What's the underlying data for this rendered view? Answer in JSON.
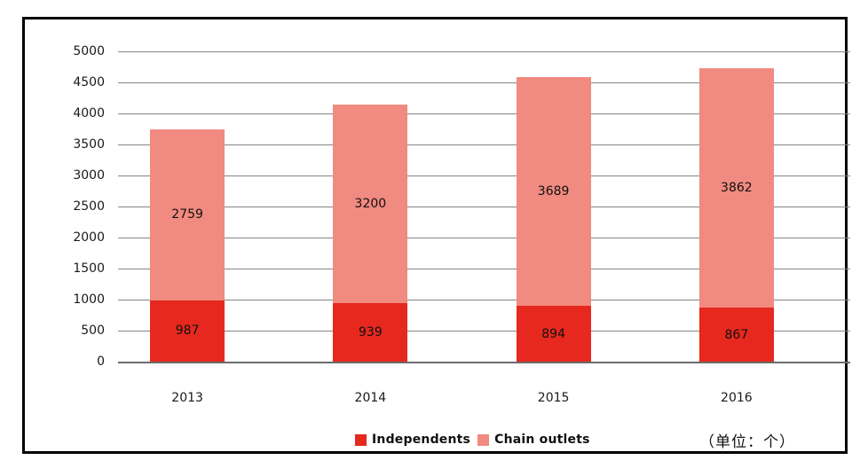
{
  "chart_data": {
    "type": "bar",
    "stacked": true,
    "categories": [
      "2013",
      "2014",
      "2015",
      "2016"
    ],
    "series": [
      {
        "name": "Independents",
        "color": "#e6281e",
        "values": [
          987,
          939,
          894,
          867
        ]
      },
      {
        "name": "Chain outlets",
        "color": "#f18a80",
        "values": [
          2759,
          3200,
          3689,
          3862
        ]
      }
    ],
    "title": "",
    "xlabel": "",
    "ylabel": "",
    "ylim": [
      0,
      5000
    ],
    "ytick_step": 500,
    "grid": true,
    "legend_position": "bottom",
    "unit_label": "（单位：个）"
  }
}
